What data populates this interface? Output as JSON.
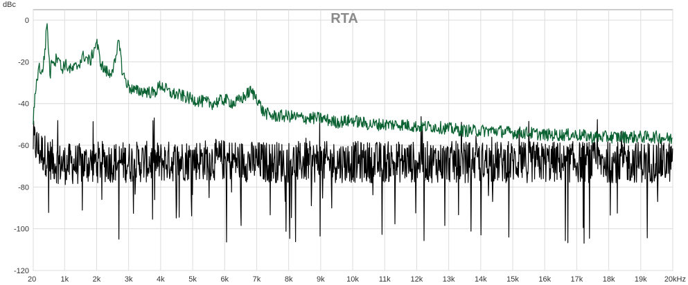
{
  "chart_data": {
    "type": "line",
    "title": "RTA",
    "ylabel": "dBc",
    "xlabel": "",
    "xlim": [
      20,
      20000
    ],
    "ylim": [
      -120,
      5
    ],
    "grid": true,
    "legend": "none",
    "x_ticks": [
      {
        "value": 20,
        "label": "20"
      },
      {
        "value": 1000,
        "label": "1k"
      },
      {
        "value": 2000,
        "label": "2k"
      },
      {
        "value": 3000,
        "label": "3k"
      },
      {
        "value": 4000,
        "label": "4k"
      },
      {
        "value": 5000,
        "label": "5k"
      },
      {
        "value": 6000,
        "label": "6k"
      },
      {
        "value": 7000,
        "label": "7k"
      },
      {
        "value": 8000,
        "label": "8k"
      },
      {
        "value": 9000,
        "label": "9k"
      },
      {
        "value": 10000,
        "label": "10k"
      },
      {
        "value": 11000,
        "label": "11k"
      },
      {
        "value": 12000,
        "label": "12k"
      },
      {
        "value": 13000,
        "label": "13k"
      },
      {
        "value": 14000,
        "label": "14k"
      },
      {
        "value": 15000,
        "label": "15k"
      },
      {
        "value": 16000,
        "label": "16k"
      },
      {
        "value": 17000,
        "label": "17k"
      },
      {
        "value": 18000,
        "label": "18k"
      },
      {
        "value": 19000,
        "label": "19k"
      },
      {
        "value": 20000,
        "label": "20kHz"
      }
    ],
    "y_ticks": [
      {
        "value": 0,
        "label": "0"
      },
      {
        "value": -20,
        "label": "-20"
      },
      {
        "value": -40,
        "label": "-40"
      },
      {
        "value": -60,
        "label": "-60"
      },
      {
        "value": -80,
        "label": "-80"
      },
      {
        "value": -100,
        "label": "-100"
      },
      {
        "value": -120,
        "label": "-120"
      }
    ],
    "series": [
      {
        "color": "#0b6232",
        "x": [
          20,
          100,
          200,
          300,
          400,
          450,
          500,
          550,
          600,
          700,
          800,
          900,
          1000,
          1200,
          1400,
          1600,
          1800,
          2000,
          2100,
          2200,
          2400,
          2600,
          2700,
          2800,
          3000,
          3200,
          3500,
          3800,
          4000,
          4300,
          4600,
          5000,
          5300,
          5600,
          6000,
          6300,
          6600,
          6800,
          7000,
          7200,
          7500,
          8000,
          8500,
          9000,
          9500,
          10000,
          10500,
          11000,
          11500,
          12000,
          12500,
          13000,
          13500,
          14000,
          14500,
          15000,
          15500,
          16000,
          16500,
          17000,
          17500,
          18000,
          18500,
          19000,
          19500,
          20000
        ],
        "values": [
          -48,
          -32,
          -22,
          -26,
          -12,
          0,
          -15,
          -27,
          -18,
          -20,
          -16,
          -24,
          -21,
          -24,
          -22,
          -17,
          -20,
          -10,
          -19,
          -23,
          -26,
          -20,
          -8,
          -25,
          -32,
          -34,
          -34,
          -35,
          -31,
          -35,
          -36,
          -38,
          -39,
          -40,
          -38,
          -40,
          -37,
          -34,
          -37,
          -44,
          -46,
          -46,
          -47,
          -47,
          -49,
          -48,
          -50,
          -50,
          -50,
          -51,
          -51,
          -52,
          -53,
          -53,
          -53,
          -54,
          -54,
          -55,
          -55,
          -55,
          -56,
          -56,
          -56,
          -56,
          -56,
          -57
        ]
      },
      {
        "color": "#000000",
        "x": [
          20,
          200,
          350,
          500,
          700,
          900,
          1000,
          1500,
          2000,
          2500,
          3000,
          4000,
          5000,
          6000,
          7000,
          8000,
          9000,
          10000,
          12000,
          14000,
          16000,
          18000,
          20000
        ],
        "values": [
          -58,
          -62,
          -64,
          -66,
          -68,
          -69,
          -69,
          -69,
          -68,
          -68,
          -68,
          -68,
          -67,
          -67,
          -68,
          -68,
          -68,
          -68,
          -68,
          -68,
          -68,
          -68,
          -68
        ]
      }
    ]
  }
}
